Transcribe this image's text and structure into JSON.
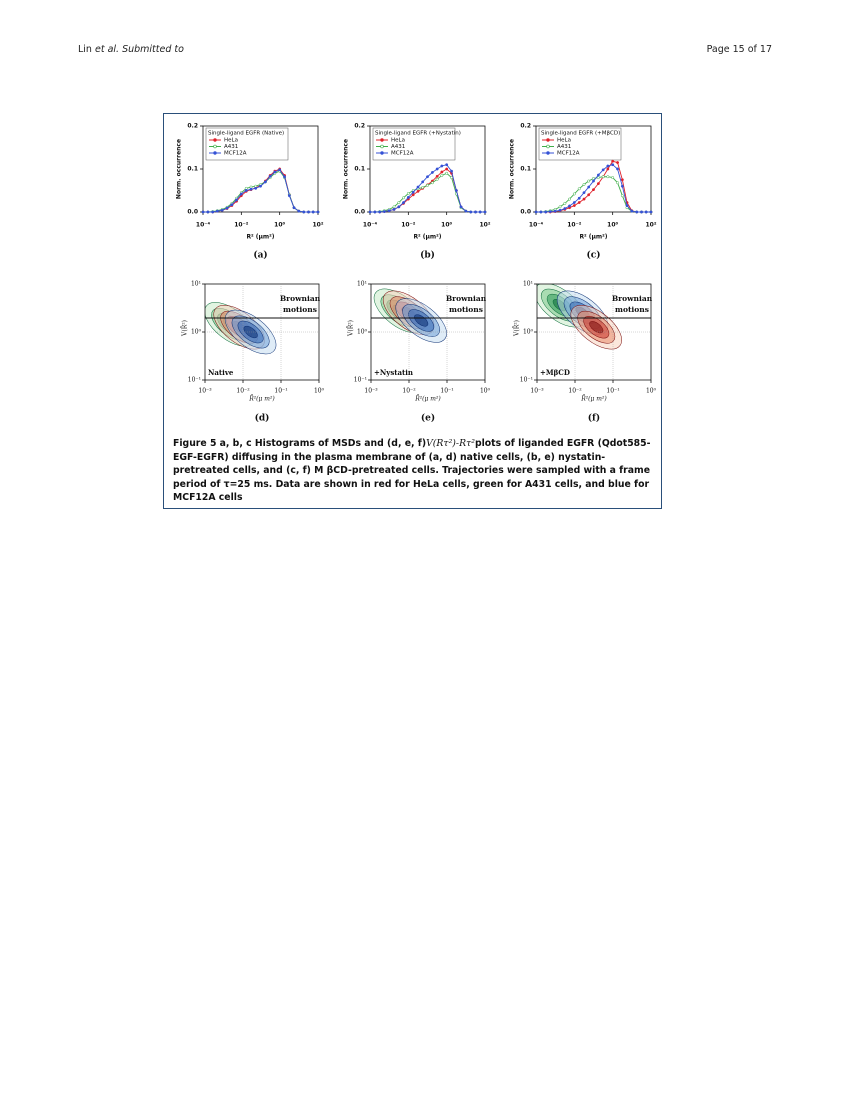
{
  "header": {
    "author": "Lin",
    "rest": "et al. Submitted to",
    "page": "Page 15 of 17"
  },
  "figure": {
    "histograms": [
      {
        "type": "line",
        "label": "(a)",
        "legend_title": "Single-ligand EGFR (Native)",
        "xlabel": "R² (μm²)",
        "ylabel": "Norm. occurrence",
        "log_x": true,
        "xlim": [
          0.0001,
          100
        ],
        "xticks": [
          {
            "value": 0.0001,
            "label": "10⁻⁴"
          },
          {
            "value": 0.01,
            "label": "10⁻²"
          },
          {
            "value": 1,
            "label": "10⁰"
          },
          {
            "value": 100,
            "label": "10²"
          }
        ],
        "ylim": [
          0,
          0.2
        ],
        "yticks": [
          {
            "value": 0,
            "label": "0.0"
          },
          0.1,
          0.2
        ],
        "x": [
          0.0001,
          0.00018,
          0.00032,
          0.00056,
          0.001,
          0.0018,
          0.0032,
          0.0056,
          0.01,
          0.018,
          0.032,
          0.056,
          0.1,
          0.18,
          0.32,
          0.56,
          1,
          1.8,
          3.2,
          5.6,
          10,
          18,
          32,
          56,
          100
        ],
        "series": [
          {
            "name": "HeLa",
            "color": "#e0202a",
            "values": [
              0,
              0,
              0,
              0.002,
              0.004,
              0.008,
              0.015,
              0.025,
              0.038,
              0.048,
              0.052,
              0.056,
              0.062,
              0.072,
              0.085,
              0.095,
              0.1,
              0.085,
              0.04,
              0.01,
              0.002,
              0,
              0,
              0,
              0
            ]
          },
          {
            "name": "A431",
            "color": "#3fae49",
            "values": [
              0,
              0,
              0.001,
              0.003,
              0.006,
              0.011,
              0.02,
              0.032,
              0.045,
              0.055,
              0.058,
              0.06,
              0.064,
              0.07,
              0.08,
              0.09,
              0.095,
              0.08,
              0.04,
              0.01,
              0.002,
              0,
              0,
              0,
              0
            ]
          },
          {
            "name": "MCF12A",
            "color": "#3552d6",
            "values": [
              0,
              0,
              0,
              0.002,
              0.004,
              0.009,
              0.017,
              0.028,
              0.042,
              0.05,
              0.053,
              0.055,
              0.06,
              0.07,
              0.083,
              0.093,
              0.098,
              0.082,
              0.038,
              0.01,
              0.002,
              0,
              0,
              0,
              0
            ]
          }
        ]
      },
      {
        "type": "line",
        "label": "(b)",
        "legend_title": "Single-ligand EGFR (+Nystatin)",
        "xlabel": "R² (μm²)",
        "ylabel": "Norm. occurrence",
        "log_x": true,
        "xlim": [
          0.0001,
          100
        ],
        "xticks": [
          {
            "value": 0.0001,
            "label": "10⁻⁴"
          },
          {
            "value": 0.01,
            "label": "10⁻²"
          },
          {
            "value": 1,
            "label": "10⁰"
          },
          {
            "value": 100,
            "label": "10²"
          }
        ],
        "ylim": [
          0,
          0.2
        ],
        "yticks": [
          {
            "value": 0,
            "label": "0.0"
          },
          0.1,
          0.2
        ],
        "x": [
          0.0001,
          0.00018,
          0.00032,
          0.00056,
          0.001,
          0.0018,
          0.0032,
          0.0056,
          0.01,
          0.018,
          0.032,
          0.056,
          0.1,
          0.18,
          0.32,
          0.56,
          1,
          1.8,
          3.2,
          5.6,
          10,
          18,
          32,
          56,
          100
        ],
        "series": [
          {
            "name": "HeLa",
            "color": "#e0202a",
            "values": [
              0,
              0,
              0,
              0.001,
              0.003,
              0.006,
              0.012,
              0.02,
              0.03,
              0.04,
              0.048,
              0.055,
              0.063,
              0.072,
              0.083,
              0.093,
              0.1,
              0.09,
              0.05,
              0.012,
              0.002,
              0,
              0,
              0,
              0
            ]
          },
          {
            "name": "A431",
            "color": "#3fae49",
            "values": [
              0,
              0,
              0.001,
              0.003,
              0.006,
              0.012,
              0.022,
              0.033,
              0.043,
              0.05,
              0.054,
              0.057,
              0.062,
              0.068,
              0.076,
              0.085,
              0.09,
              0.08,
              0.042,
              0.01,
              0.002,
              0,
              0,
              0,
              0
            ]
          },
          {
            "name": "MCF12A",
            "color": "#3552d6",
            "values": [
              0,
              0,
              0,
              0.001,
              0.003,
              0.006,
              0.012,
              0.022,
              0.034,
              0.046,
              0.058,
              0.07,
              0.082,
              0.092,
              0.1,
              0.107,
              0.11,
              0.095,
              0.05,
              0.012,
              0.002,
              0,
              0,
              0,
              0
            ]
          }
        ]
      },
      {
        "type": "line",
        "label": "(c)",
        "legend_title": "Single-ligand EGFR (+MβCD)",
        "xlabel": "R² (μm²)",
        "ylabel": "Norm. occurrence",
        "log_x": true,
        "xlim": [
          0.0001,
          100
        ],
        "xticks": [
          {
            "value": 0.0001,
            "label": "10⁻⁴"
          },
          {
            "value": 0.01,
            "label": "10⁻²"
          },
          {
            "value": 1,
            "label": "10⁰"
          },
          {
            "value": 100,
            "label": "10²"
          }
        ],
        "ylim": [
          0,
          0.2
        ],
        "yticks": [
          {
            "value": 0,
            "label": "0.0"
          },
          0.1,
          0.2
        ],
        "x": [
          0.0001,
          0.00018,
          0.00032,
          0.00056,
          0.001,
          0.0018,
          0.0032,
          0.0056,
          0.01,
          0.018,
          0.032,
          0.056,
          0.1,
          0.18,
          0.32,
          0.56,
          1,
          1.8,
          3.2,
          5.6,
          10,
          18,
          32,
          56,
          100
        ],
        "series": [
          {
            "name": "HeLa",
            "color": "#e0202a",
            "values": [
              0,
              0,
              0,
              0,
              0.001,
              0.003,
              0.006,
              0.01,
              0.015,
              0.022,
              0.03,
              0.04,
              0.052,
              0.066,
              0.082,
              0.1,
              0.118,
              0.115,
              0.075,
              0.022,
              0.003,
              0,
              0,
              0,
              0
            ]
          },
          {
            "name": "A431",
            "color": "#3fae49",
            "values": [
              0,
              0,
              0.001,
              0.003,
              0.006,
              0.012,
              0.02,
              0.03,
              0.042,
              0.054,
              0.064,
              0.072,
              0.078,
              0.08,
              0.082,
              0.082,
              0.08,
              0.068,
              0.038,
              0.01,
              0.002,
              0,
              0,
              0,
              0
            ]
          },
          {
            "name": "MCF12A",
            "color": "#3552d6",
            "values": [
              0,
              0,
              0,
              0.001,
              0.002,
              0.004,
              0.008,
              0.014,
              0.022,
              0.032,
              0.045,
              0.058,
              0.072,
              0.086,
              0.098,
              0.107,
              0.11,
              0.1,
              0.06,
              0.015,
              0.002,
              0,
              0,
              0,
              0
            ]
          }
        ]
      }
    ],
    "contours": [
      {
        "label": "(d)",
        "condition": "Native",
        "annotation": [
          "Brownian",
          "motions"
        ],
        "xlabel": "R̄²(μ m²)",
        "ylabel": "V(R̄²)",
        "log_x": true,
        "log_y": true,
        "xlim": [
          0.001,
          1
        ],
        "xticks": [
          {
            "value": 0.001,
            "label": "10⁻³"
          },
          {
            "value": 0.01,
            "label": "10⁻²"
          },
          {
            "value": 0.1,
            "label": "10⁻¹"
          },
          {
            "value": 1,
            "label": "10⁰"
          }
        ],
        "ylim": [
          0.1,
          10
        ],
        "yticks": [
          {
            "value": 0.1,
            "label": "10⁻¹"
          },
          {
            "value": 1,
            "label": "10⁰"
          },
          {
            "value": 10,
            "label": "10¹"
          }
        ]
      },
      {
        "label": "(e)",
        "condition": "+Nystatin",
        "annotation": [
          "Brownian",
          "motions"
        ],
        "xlabel": "R̄²(μ m²)",
        "ylabel": "V(R̄²)",
        "log_x": true,
        "log_y": true,
        "xlim": [
          0.001,
          1
        ],
        "xticks": [
          {
            "value": 0.001,
            "label": "10⁻³"
          },
          {
            "value": 0.01,
            "label": "10⁻²"
          },
          {
            "value": 0.1,
            "label": "10⁻¹"
          },
          {
            "value": 1,
            "label": "10⁰"
          }
        ],
        "ylim": [
          0.1,
          10
        ],
        "yticks": [
          {
            "value": 0.1,
            "label": "10⁻¹"
          },
          {
            "value": 1,
            "label": "10⁰"
          },
          {
            "value": 10,
            "label": "10¹"
          }
        ]
      },
      {
        "label": "(f)",
        "condition": "+MβCD",
        "annotation": [
          "Brownian",
          "motions"
        ],
        "xlabel": "R̄²(μ m²)",
        "ylabel": "V(R̄²)",
        "log_x": true,
        "log_y": true,
        "xlim": [
          0.001,
          1
        ],
        "xticks": [
          {
            "value": 0.001,
            "label": "10⁻³"
          },
          {
            "value": 0.01,
            "label": "10⁻²"
          },
          {
            "value": 0.1,
            "label": "10⁻¹"
          },
          {
            "value": 1,
            "label": "10⁰"
          }
        ],
        "ylim": [
          0.1,
          10
        ],
        "yticks": [
          {
            "value": 0.1,
            "label": "10⁻¹"
          },
          {
            "value": 1,
            "label": "10⁰"
          },
          {
            "value": 10,
            "label": "10¹"
          }
        ]
      }
    ],
    "caption": {
      "before": "Figure 5 a, b, c Histograms of MSDs and (d, e, f)",
      "math": "V(Rτ²)-Rτ²",
      "after": "plots of liganded EGFR (Qdot585-EGF-EGFR) diffusing in the plasma membrane of (a, d) native cells, (b, e) nystatin-pretreated cells, and (c, f) M βCD-pretreated cells. Trajectories were sampled with a frame period of τ=25 ms. Data are shown in red for HeLa cells, green for A431 cells, and blue for MCF12A cells"
    }
  }
}
